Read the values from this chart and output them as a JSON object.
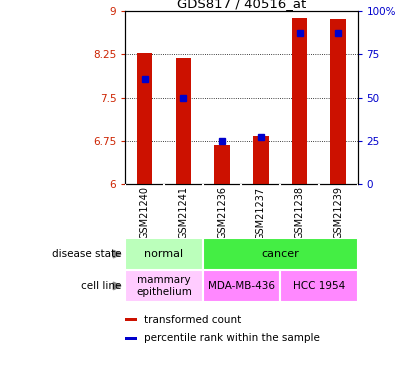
{
  "title": "GDS817 / 40516_at",
  "samples": [
    "GSM21240",
    "GSM21241",
    "GSM21236",
    "GSM21237",
    "GSM21238",
    "GSM21239"
  ],
  "transformed_counts": [
    8.27,
    8.18,
    6.68,
    6.83,
    8.88,
    8.87
  ],
  "percentile_ranks": [
    7.82,
    7.5,
    6.75,
    6.82,
    8.62,
    8.62
  ],
  "ylim_left": [
    6,
    9
  ],
  "ylim_right": [
    0,
    100
  ],
  "yticks_left": [
    6,
    6.75,
    7.5,
    8.25,
    9
  ],
  "yticks_right": [
    0,
    25,
    50,
    75,
    100
  ],
  "ytick_labels_left": [
    "6",
    "6.75",
    "7.5",
    "8.25",
    "9"
  ],
  "ytick_labels_right": [
    "0",
    "25",
    "50",
    "75",
    "100%"
  ],
  "bar_color": "#cc1100",
  "percentile_color": "#0000cc",
  "bar_width": 0.4,
  "disease_state_labels": [
    {
      "text": "normal",
      "cols": [
        0,
        1
      ],
      "color": "#bbffbb"
    },
    {
      "text": "cancer",
      "cols": [
        2,
        3,
        4,
        5
      ],
      "color": "#44ee44"
    }
  ],
  "cell_line_labels": [
    {
      "text": "mammary\nepithelium",
      "cols": [
        0,
        1
      ],
      "color": "#ffccff"
    },
    {
      "text": "MDA-MB-436",
      "cols": [
        2,
        3
      ],
      "color": "#ff88ff"
    },
    {
      "text": "HCC 1954",
      "cols": [
        4,
        5
      ],
      "color": "#ff88ff"
    }
  ],
  "left_labels": [
    "disease state",
    "cell line"
  ],
  "legend_items": [
    {
      "label": "transformed count",
      "color": "#cc1100"
    },
    {
      "label": "percentile rank within the sample",
      "color": "#0000cc"
    }
  ],
  "grid_color": "#000000",
  "background_plot": "#ffffff",
  "background_table": "#cccccc",
  "left_axis_color": "#cc2200",
  "right_axis_color": "#0000cc",
  "arrow_color": "#888888"
}
